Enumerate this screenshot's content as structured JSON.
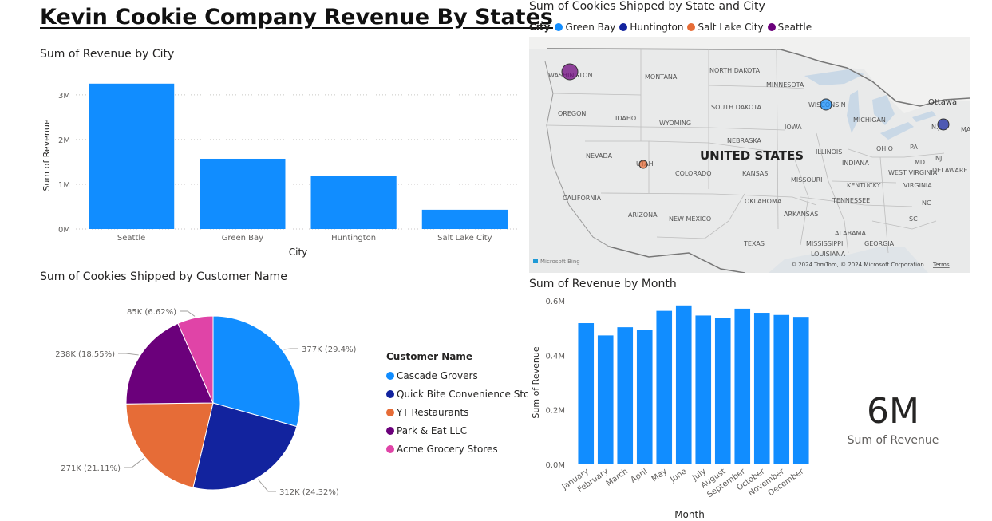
{
  "dashboard": {
    "title": "Kevin Cookie Company Revenue By States"
  },
  "revenue_by_city": {
    "title": "Sum of Revenue by City"
  },
  "cookies_by_state_city": {
    "title": "Sum of Cookies Shipped by State and City",
    "legend_title": "City",
    "legend": [
      {
        "name": "Green Bay",
        "color": "#118DFF"
      },
      {
        "name": "Huntington",
        "color": "#12239E"
      },
      {
        "name": "Salt Lake City",
        "color": "#E66C37"
      },
      {
        "name": "Seattle",
        "color": "#6B007B"
      }
    ],
    "map_labels": {
      "country": "UNITED STATES",
      "states": [
        "WASHINGTON",
        "MONTANA",
        "NORTH DAKOTA",
        "MINNESOTA",
        "OREGON",
        "IDAHO",
        "SOUTH DAKOTA",
        "WYOMING",
        "WISCONSIN",
        "MICHIGAN",
        "IOWA",
        "NEBRASKA",
        "NEVADA",
        "UTAH",
        "COLORADO",
        "KANSAS",
        "ILLINOIS",
        "INDIANA",
        "OHIO",
        "PA",
        "N.J.",
        "CALIFORNIA",
        "MISSOURI",
        "KENTUCKY",
        "WEST VIRGINIA",
        "VIRGINIA",
        "MD",
        "DELAWARE",
        "NJ",
        "OKLAHOMA",
        "ARIZONA",
        "NEW MEXICO",
        "TENNESSEE",
        "ARKANSAS",
        "NC",
        "SC",
        "TEXAS",
        "ALABAMA",
        "MISSISSIPPI",
        "GEORGIA",
        "LOUISIANA",
        "Ottawa",
        "MA"
      ],
      "logo": "Microsoft Bing",
      "attribution": "© 2024 TomTom, © 2024 Microsoft Corporation",
      "terms": "Terms"
    }
  },
  "cookies_by_customer": {
    "title": "Sum of Cookies Shipped by Customer Name",
    "legend_title": "Customer Name"
  },
  "revenue_by_month": {
    "title": "Sum of Revenue by Month"
  },
  "kpi": {
    "value": "6M",
    "label": "Sum of Revenue"
  },
  "chart_data": [
    {
      "type": "bar",
      "title": "Sum of Revenue by City",
      "xlabel": "City",
      "ylabel": "Sum of Revenue",
      "categories": [
        "Seattle",
        "Green Bay",
        "Huntington",
        "Salt Lake City"
      ],
      "values": [
        3250000,
        1570000,
        1190000,
        430000
      ],
      "color": "#118DFF",
      "ylim": [
        0,
        3300000
      ],
      "yticks": [
        0,
        1000000,
        2000000,
        3000000
      ],
      "ytick_labels": [
        "0M",
        "1M",
        "2M",
        "3M"
      ],
      "grid": true
    },
    {
      "type": "scatter",
      "title": "Sum of Cookies Shipped by State and City",
      "legend_title": "City",
      "legend_placement": "top-left",
      "points": [
        {
          "city": "Seattle",
          "state": "WASHINGTON",
          "color": "#6B007B",
          "size_rank": 1
        },
        {
          "city": "Green Bay",
          "state": "WISCONSIN",
          "color": "#118DFF",
          "size_rank": 2
        },
        {
          "city": "Huntington",
          "state": "NEW YORK",
          "color": "#12239E",
          "size_rank": 3
        },
        {
          "city": "Salt Lake City",
          "state": "UTAH",
          "color": "#E66C37",
          "size_rank": 4
        }
      ]
    },
    {
      "type": "pie",
      "title": "Sum of Cookies Shipped by Customer Name",
      "legend_title": "Customer Name",
      "legend_placement": "right",
      "slices": [
        {
          "name": "Cascade Grovers",
          "value": 377000,
          "label": "377K (29.4%)",
          "color": "#118DFF"
        },
        {
          "name": "Quick Bite Convenience Stores",
          "value": 312000,
          "label": "312K (24.32%)",
          "color": "#12239E"
        },
        {
          "name": "YT Restaurants",
          "value": 271000,
          "label": "271K (21.11%)",
          "color": "#E66C37"
        },
        {
          "name": "Park & Eat LLC",
          "value": 238000,
          "label": "238K (18.55%)",
          "color": "#6B007B"
        },
        {
          "name": "Acme Grocery Stores",
          "value": 85000,
          "label": "85K (6.62%)",
          "color": "#E044A7"
        }
      ]
    },
    {
      "type": "bar",
      "title": "Sum of Revenue by Month",
      "xlabel": "Month",
      "ylabel": "Sum of Revenue",
      "categories": [
        "January",
        "February",
        "March",
        "April",
        "May",
        "June",
        "July",
        "August",
        "September",
        "October",
        "November",
        "December"
      ],
      "values": [
        518000,
        473000,
        503000,
        493000,
        563000,
        583000,
        546000,
        538000,
        571000,
        556000,
        548000,
        541000
      ],
      "color": "#118DFF",
      "ylim": [
        0,
        600000
      ],
      "yticks": [
        0,
        200000,
        400000,
        600000
      ],
      "ytick_labels": [
        "0.0M",
        "0.2M",
        "0.4M",
        "0.6M"
      ],
      "grid": false
    }
  ]
}
